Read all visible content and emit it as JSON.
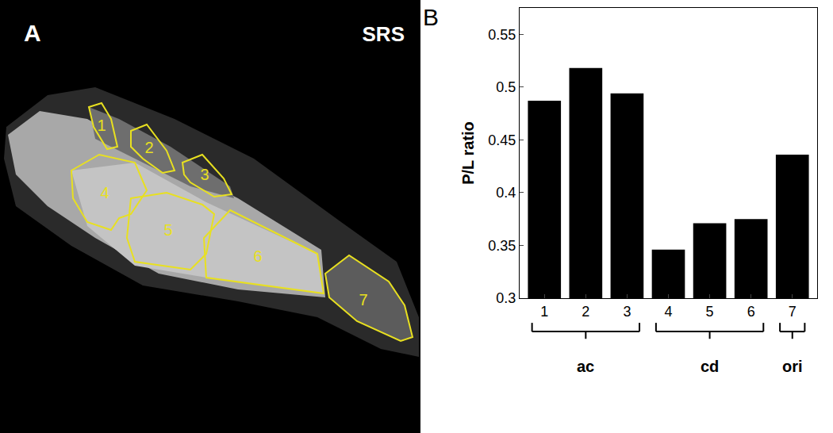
{
  "image_panel": {
    "label": "A",
    "title": "SRS",
    "regions": [
      "1",
      "2",
      "3",
      "4",
      "5",
      "6",
      "7"
    ]
  },
  "chart_data": {
    "type": "bar",
    "categories": [
      "1",
      "2",
      "3",
      "4",
      "5",
      "6",
      "7"
    ],
    "values": [
      0.487,
      0.518,
      0.494,
      0.346,
      0.371,
      0.375,
      0.436
    ],
    "color": "#000000",
    "y_label": "P/L ratio",
    "ylim": [
      0.3,
      0.575
    ],
    "yticks": [
      0.3,
      0.35,
      0.4,
      0.45,
      0.5,
      0.55
    ],
    "grid": false,
    "annotations": [
      {
        "text": "B"
      }
    ],
    "groups": [
      {
        "text": "ac",
        "categories": [
          "1",
          "2",
          "3"
        ]
      },
      {
        "text": "cd",
        "categories": [
          "4",
          "5",
          "6"
        ]
      },
      {
        "text": "ori",
        "categories": [
          "7"
        ]
      }
    ]
  }
}
